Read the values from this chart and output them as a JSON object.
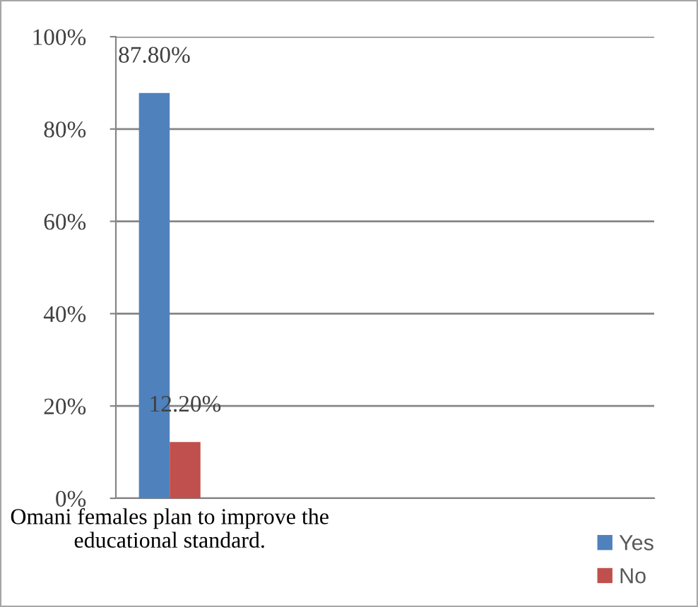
{
  "chart_data": {
    "type": "bar",
    "categories": [
      "Omani females plan to improve the educational standard.",
      null,
      null,
      null,
      null
    ],
    "series": [
      {
        "name": "Yes",
        "color": "#4f81bd",
        "values": [
          87.8,
          null,
          null,
          null,
          null
        ],
        "value_labels": [
          "87.80%",
          null,
          null,
          null,
          null
        ]
      },
      {
        "name": "No",
        "color": "#c0504d",
        "values": [
          12.2,
          null,
          null,
          null,
          null
        ],
        "value_labels": [
          "12.20%",
          null,
          null,
          null,
          null
        ]
      }
    ],
    "ylim": [
      0,
      100
    ],
    "yticks": [
      {
        "value": 0,
        "label": "0%"
      },
      {
        "value": 20,
        "label": "20%"
      },
      {
        "value": 40,
        "label": "40%"
      },
      {
        "value": 60,
        "label": "60%"
      },
      {
        "value": 80,
        "label": "80%"
      },
      {
        "value": 100,
        "label": "100%"
      }
    ],
    "grid": "y",
    "legend": "bottom right"
  }
}
